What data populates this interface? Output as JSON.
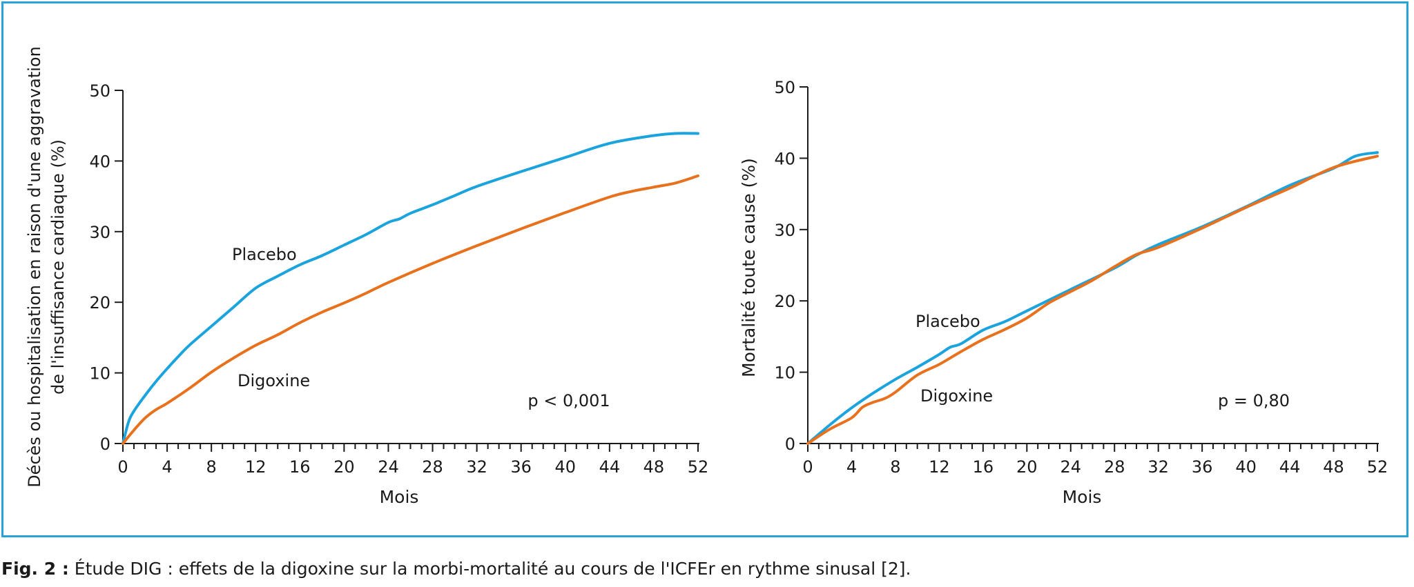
{
  "colors": {
    "frame": "#27a3d9",
    "placebo": "#1aa3dc",
    "digoxine": "#e8711e",
    "axis": "#1a1a1a"
  },
  "chart_data": [
    {
      "type": "line",
      "ylabel": "Décès ou hospitalisation en raison d'une aggravation\nde l'insuffisance cardiaque (%)",
      "xlabel": "Mois",
      "xlim": [
        0,
        52
      ],
      "ylim": [
        0,
        50
      ],
      "xticks": [
        0,
        4,
        8,
        12,
        16,
        20,
        24,
        28,
        32,
        36,
        40,
        44,
        48,
        52
      ],
      "yticks": [
        0,
        10,
        20,
        30,
        40,
        50
      ],
      "annotation": "p < 0,001",
      "series": [
        {
          "name": "Placebo",
          "x": [
            0,
            0.5,
            1,
            2,
            3,
            4,
            5,
            6,
            8,
            10,
            12,
            14,
            16,
            18,
            20,
            22,
            24,
            25,
            26,
            28,
            30,
            32,
            36,
            40,
            44,
            48,
            50,
            52
          ],
          "y": [
            0,
            3,
            4.6,
            6.8,
            8.8,
            10.6,
            12.3,
            13.9,
            16.6,
            19.3,
            22,
            23.7,
            25.3,
            26.6,
            28.1,
            29.6,
            31.3,
            31.8,
            32.6,
            33.8,
            35.1,
            36.4,
            38.5,
            40.5,
            42.5,
            43.6,
            43.9,
            43.9
          ]
        },
        {
          "name": "Digoxine",
          "x": [
            0,
            1,
            2,
            3,
            4,
            6,
            8,
            10,
            12,
            14,
            16,
            18,
            20,
            22,
            24,
            28,
            32,
            36,
            40,
            44,
            46,
            48,
            50,
            52
          ],
          "y": [
            0,
            1.9,
            3.6,
            4.8,
            5.7,
            7.8,
            10.1,
            12.1,
            13.9,
            15.4,
            17.1,
            18.6,
            19.9,
            21.3,
            22.8,
            25.5,
            28,
            30.4,
            32.7,
            34.9,
            35.7,
            36.3,
            36.9,
            37.9
          ]
        }
      ],
      "labels": {
        "placebo": "Placebo",
        "digoxine": "Digoxine"
      }
    },
    {
      "type": "line",
      "ylabel": "Mortalité toute cause (%)",
      "xlabel": "Mois",
      "xlim": [
        0,
        52
      ],
      "ylim": [
        0,
        50
      ],
      "xticks": [
        0,
        4,
        8,
        12,
        16,
        20,
        24,
        28,
        32,
        36,
        40,
        44,
        48,
        52
      ],
      "yticks": [
        0,
        10,
        20,
        30,
        40,
        50
      ],
      "annotation": "p = 0,80",
      "series": [
        {
          "name": "Placebo",
          "x": [
            0,
            2,
            4,
            6,
            8,
            10,
            12,
            13,
            14,
            16,
            18,
            20,
            24,
            28,
            30,
            32,
            36,
            40,
            44,
            48,
            50,
            52
          ],
          "y": [
            0,
            2.6,
            5,
            7.1,
            9,
            10.7,
            12.5,
            13.5,
            14,
            15.9,
            17.1,
            18.6,
            21.6,
            24.6,
            26.4,
            27.9,
            30.4,
            33.2,
            36.2,
            38.6,
            40.3,
            40.8
          ]
        },
        {
          "name": "Digoxine",
          "x": [
            0,
            2,
            4,
            5,
            6,
            7,
            8,
            10,
            12,
            14,
            16,
            18,
            20,
            22,
            24,
            26,
            28,
            30,
            32,
            36,
            40,
            44,
            48,
            52
          ],
          "y": [
            0,
            2,
            3.6,
            5.1,
            5.8,
            6.3,
            7.2,
            9.6,
            11.1,
            12.9,
            14.6,
            16,
            17.6,
            19.7,
            21.3,
            22.9,
            24.8,
            26.5,
            27.5,
            30.2,
            33.1,
            35.8,
            38.7,
            40.3
          ]
        }
      ],
      "labels": {
        "placebo": "Placebo",
        "digoxine": "Digoxine"
      }
    }
  ],
  "caption": {
    "label": "Fig. 2 :",
    "text": " Étude DIG : effets de la digoxine sur la morbi-mortalité au cours de l'ICFEr en rythme sinusal [2]."
  }
}
